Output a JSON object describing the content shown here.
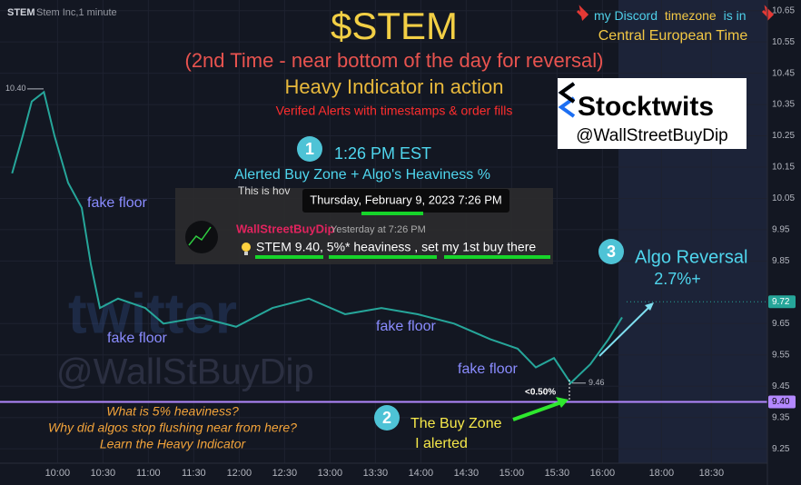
{
  "header": {
    "symbol": "STEM",
    "name": "Stem Inc,1 minute"
  },
  "annotations": {
    "title": "$STEM",
    "subtitle": "(2nd Time - near bottom of the day for reversal)",
    "indicator": "Heavy Indicator in action",
    "verified": "Verifed Alerts with timestamps & order fills",
    "discord_1": "my Discord",
    "discord_2": "timezone",
    "discord_3": "is in",
    "discord_tz": "Central European Time",
    "stocktwits": "Stocktwits",
    "handle": "@WallStreetBuyDip",
    "step1_num": "1",
    "step1_time": "1:26 PM EST",
    "step1_text": "Alerted Buy Zone + Algo's Heaviness %",
    "tweet_behind": "This is hov",
    "tweet_tooltip": "Thursday, February 9, 2023 7:26 PM",
    "tweet_user": "WallStreetBuyDip",
    "tweet_time": "Yesterday at 7:26 PM",
    "tweet_text": "STEM 9.40, 5%* heaviness , set my 1st buy there",
    "fake_floor": [
      "fake floor",
      "fake floor",
      "fake floor",
      "fake floor"
    ],
    "watermark_1": "twitter",
    "watermark_2": "@WallStBuyDip",
    "question_1": "What is 5% heaviness?",
    "question_2": "Why did algos stop flushing near from here?",
    "question_3": "Learn the Heavy Indicator",
    "step2_num": "2",
    "step2_text_1": "The Buy Zone",
    "step2_text_2": "I alerted",
    "step3_num": "3",
    "step3_text_1": "Algo Reversal",
    "step3_text_2": "2.7%+",
    "drop_pct": "<0.50%"
  },
  "chart_data": {
    "type": "line",
    "color": "#26a69a",
    "grid": true,
    "x": [
      0,
      7,
      13,
      21,
      28,
      37,
      46,
      52,
      58,
      70,
      88,
      100,
      124,
      148,
      172,
      196,
      220,
      244,
      268,
      292,
      316,
      334,
      346,
      358,
      369,
      382,
      394,
      403
    ],
    "values": [
      10.13,
      10.25,
      10.36,
      10.39,
      10.25,
      10.1,
      10.02,
      9.84,
      9.7,
      9.73,
      9.7,
      9.65,
      9.67,
      9.64,
      9.7,
      9.73,
      9.68,
      9.7,
      9.68,
      9.65,
      9.6,
      9.57,
      9.51,
      9.54,
      9.46,
      9.52,
      9.6,
      9.67
    ],
    "xlim": [
      -8,
      499
    ],
    "ylim": [
      9.204,
      10.684
    ],
    "xticks": [
      {
        "value": 30,
        "label": "10:00"
      },
      {
        "value": 60,
        "label": "10:30"
      },
      {
        "value": 90,
        "label": "11:00"
      },
      {
        "value": 120,
        "label": "11:30"
      },
      {
        "value": 150,
        "label": "12:00"
      },
      {
        "value": 180,
        "label": "12:30"
      },
      {
        "value": 210,
        "label": "13:00"
      },
      {
        "value": 240,
        "label": "13:30"
      },
      {
        "value": 270,
        "label": "14:00"
      },
      {
        "value": 300,
        "label": "14:30"
      },
      {
        "value": 330,
        "label": "15:00"
      },
      {
        "value": 360,
        "label": "15:30"
      },
      {
        "value": 390,
        "label": "16:00"
      },
      {
        "value": 429,
        "label": "18:00"
      },
      {
        "value": 462,
        "label": "18:30"
      }
    ],
    "yticks": [
      10.65,
      10.55,
      10.45,
      10.35,
      10.25,
      10.15,
      10.05,
      9.95,
      9.85,
      9.65,
      9.55,
      9.45,
      9.35,
      9.25
    ],
    "high_marker": {
      "value": 10.4,
      "label": "10.40"
    },
    "low_marker": {
      "value": 9.46,
      "label": "9.46"
    },
    "last_price": {
      "value": 9.72,
      "label": "9.72"
    },
    "alert_line": {
      "value": 9.4,
      "label": "9.40"
    }
  }
}
